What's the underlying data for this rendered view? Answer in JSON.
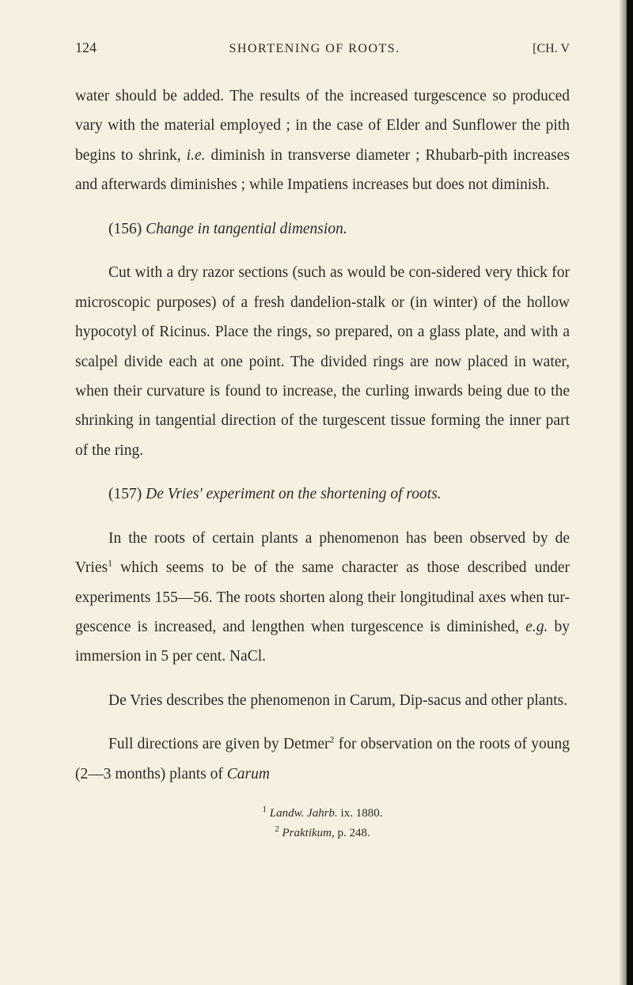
{
  "header": {
    "page_number": "124",
    "running_title": "SHORTENING OF ROOTS.",
    "chapter_ref": "[CH. V"
  },
  "paragraphs": {
    "p1": "water should be added. The results of the increased turgescence so produced vary with the material employed ; in the case of Elder and Sunflower the pith begins to shrink, ",
    "p1_italic1": "i.e.",
    "p1_cont": " diminish in transverse diameter ; Rhubarb-pith increases and afterwards diminishes ; while Impatiens increases but does not diminish.",
    "heading156_num": "(156)    ",
    "heading156_title": "Change in tangential dimension.",
    "p2": "Cut with a dry razor sections (such as would be con-sidered very thick for microscopic purposes) of a fresh dandelion-stalk or (in winter) of the hollow hypocotyl of Ricinus. Place the rings, so prepared, on a glass plate, and with a scalpel divide each at one point. The divided rings are now placed in water, when their curvature is found to increase, the curling inwards being due to the shrinking in tangential direction of the turgescent tissue forming the inner part of the ring.",
    "heading157_num": "(157)    ",
    "heading157_title": "De Vries' experiment on the shortening of roots.",
    "p3_a": "In the roots of certain plants a phenomenon has been observed by de Vries",
    "p3_sup1": "1",
    "p3_b": " which seems to be of the same character as those described under experiments 155—56. The roots shorten along their longitudinal axes when tur-gescence is increased, and lengthen when turgescence is diminished, ",
    "p3_italic1": "e.g.",
    "p3_c": " by immersion in 5 per cent. NaCl.",
    "p4": "De Vries describes the phenomenon in Carum, Dip-sacus and other plants.",
    "p5_a": "Full directions are given by Detmer",
    "p5_sup1": "2",
    "p5_b": " for observation on the roots of young (2—3 months) plants of ",
    "p5_italic1": "Carum"
  },
  "footnotes": {
    "fn1_ref": "1",
    "fn1_a": " ",
    "fn1_italic": "Landw. Jahrb.",
    "fn1_b": " ix. 1880.",
    "fn2_ref": "2",
    "fn2_a": " ",
    "fn2_italic": "Praktikum,",
    "fn2_b": " p. 248."
  },
  "colors": {
    "page_background": "#f5f0e0",
    "text_color": "#2a2a28",
    "shadow_dark": "#1a1a15",
    "edge_dark": "#0a0a08"
  },
  "typography": {
    "body_font_size": 19.5,
    "header_font_size": 17,
    "footnote_font_size": 15,
    "line_height": 1.92,
    "font_family": "Georgia, Times New Roman, serif"
  }
}
